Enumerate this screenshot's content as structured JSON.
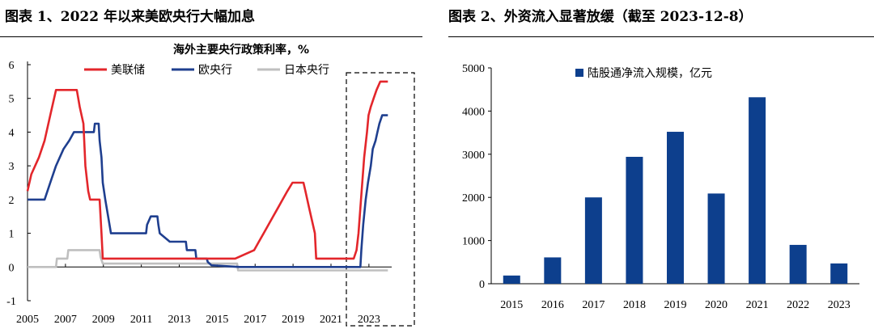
{
  "panels": {
    "left_title": "图表 1、2022 年以来美欧央行大幅加息",
    "right_title": "图表 2、外资流入显著放缓（截至 2023-12-8）"
  },
  "colors": {
    "fed": "#e3262b",
    "ecb": "#1f3f8f",
    "boj": "#bfbfbf",
    "bar": "#0d3f8d"
  },
  "chart_data": [
    {
      "type": "line",
      "title": "海外主要央行政策利率，%",
      "xlabel": "",
      "ylabel": "",
      "xlim": [
        2005,
        2024.2
      ],
      "ylim": [
        -1,
        6
      ],
      "yticks": [
        -1,
        0,
        1,
        2,
        3,
        4,
        5,
        6
      ],
      "xticks": [
        2005,
        2007,
        2009,
        2011,
        2013,
        2015,
        2017,
        2019,
        2021,
        2023
      ],
      "legend_position": "top",
      "annotations": [
        "dashed box highlighting 2022–2023"
      ],
      "series": [
        {
          "name": "美联储",
          "color_key": "fed",
          "points": [
            [
              2005,
              2.25
            ],
            [
              2005.2,
              2.75
            ],
            [
              2005.6,
              3.25
            ],
            [
              2005.9,
              3.75
            ],
            [
              2006.2,
              4.5
            ],
            [
              2006.5,
              5.25
            ],
            [
              2007.6,
              5.25
            ],
            [
              2007.75,
              4.75
            ],
            [
              2007.85,
              4.5
            ],
            [
              2007.95,
              4.25
            ],
            [
              2008.05,
              3.0
            ],
            [
              2008.2,
              2.25
            ],
            [
              2008.3,
              2.0
            ],
            [
              2008.8,
              2.0
            ],
            [
              2008.9,
              1.0
            ],
            [
              2008.97,
              0.25
            ],
            [
              2015.95,
              0.25
            ],
            [
              2016.95,
              0.5
            ],
            [
              2017.2,
              0.75
            ],
            [
              2017.45,
              1.0
            ],
            [
              2017.95,
              1.5
            ],
            [
              2018.2,
              1.75
            ],
            [
              2018.45,
              2.0
            ],
            [
              2018.7,
              2.25
            ],
            [
              2018.97,
              2.5
            ],
            [
              2019.55,
              2.5
            ],
            [
              2019.65,
              2.25
            ],
            [
              2019.75,
              2.0
            ],
            [
              2019.85,
              1.75
            ],
            [
              2020.15,
              1.0
            ],
            [
              2020.22,
              0.25
            ],
            [
              2022.2,
              0.25
            ],
            [
              2022.35,
              0.5
            ],
            [
              2022.45,
              1.0
            ],
            [
              2022.55,
              1.75
            ],
            [
              2022.75,
              3.25
            ],
            [
              2022.9,
              4.0
            ],
            [
              2022.98,
              4.5
            ],
            [
              2023.1,
              4.75
            ],
            [
              2023.25,
              5.0
            ],
            [
              2023.4,
              5.25
            ],
            [
              2023.6,
              5.5
            ],
            [
              2024.0,
              5.5
            ]
          ]
        },
        {
          "name": "欧央行",
          "color_key": "ecb",
          "points": [
            [
              2005,
              2.0
            ],
            [
              2005.9,
              2.0
            ],
            [
              2006.2,
              2.5
            ],
            [
              2006.5,
              3.0
            ],
            [
              2006.9,
              3.5
            ],
            [
              2007.2,
              3.75
            ],
            [
              2007.45,
              4.0
            ],
            [
              2008.5,
              4.0
            ],
            [
              2008.55,
              4.25
            ],
            [
              2008.75,
              4.25
            ],
            [
              2008.8,
              3.75
            ],
            [
              2008.9,
              3.25
            ],
            [
              2008.97,
              2.5
            ],
            [
              2009.1,
              2.0
            ],
            [
              2009.25,
              1.5
            ],
            [
              2009.4,
              1.0
            ],
            [
              2011.25,
              1.0
            ],
            [
              2011.3,
              1.25
            ],
            [
              2011.5,
              1.5
            ],
            [
              2011.85,
              1.5
            ],
            [
              2011.9,
              1.25
            ],
            [
              2011.97,
              1.0
            ],
            [
              2012.5,
              0.75
            ],
            [
              2013.35,
              0.75
            ],
            [
              2013.4,
              0.5
            ],
            [
              2013.85,
              0.5
            ],
            [
              2013.9,
              0.25
            ],
            [
              2014.45,
              0.25
            ],
            [
              2014.5,
              0.15
            ],
            [
              2014.7,
              0.05
            ],
            [
              2016.2,
              0.0
            ],
            [
              2022.55,
              0.0
            ],
            [
              2022.6,
              0.5
            ],
            [
              2022.7,
              1.25
            ],
            [
              2022.83,
              2.0
            ],
            [
              2022.95,
              2.5
            ],
            [
              2023.1,
              3.0
            ],
            [
              2023.2,
              3.5
            ],
            [
              2023.35,
              3.75
            ],
            [
              2023.45,
              4.0
            ],
            [
              2023.55,
              4.25
            ],
            [
              2023.7,
              4.5
            ],
            [
              2024.0,
              4.5
            ]
          ]
        },
        {
          "name": "日本央行",
          "color_key": "boj",
          "points": [
            [
              2005,
              0.0
            ],
            [
              2006.5,
              0.0
            ],
            [
              2006.55,
              0.25
            ],
            [
              2007.1,
              0.25
            ],
            [
              2007.15,
              0.5
            ],
            [
              2008.8,
              0.5
            ],
            [
              2008.85,
              0.3
            ],
            [
              2008.97,
              0.1
            ],
            [
              2016.05,
              0.1
            ],
            [
              2016.1,
              -0.1
            ],
            [
              2024.0,
              -0.1
            ]
          ]
        }
      ]
    },
    {
      "type": "bar",
      "title": "",
      "legend": "陆股通净流入规模，亿元",
      "legend_position": "top",
      "xlabel": "",
      "ylabel": "",
      "ylim": [
        0,
        5000
      ],
      "yticks": [
        0,
        1000,
        2000,
        3000,
        4000,
        5000
      ],
      "categories": [
        "2015",
        "2016",
        "2017",
        "2018",
        "2019",
        "2020",
        "2021",
        "2022",
        "2023"
      ],
      "values": [
        190,
        610,
        2000,
        2940,
        3520,
        2090,
        4320,
        900,
        470
      ]
    }
  ]
}
